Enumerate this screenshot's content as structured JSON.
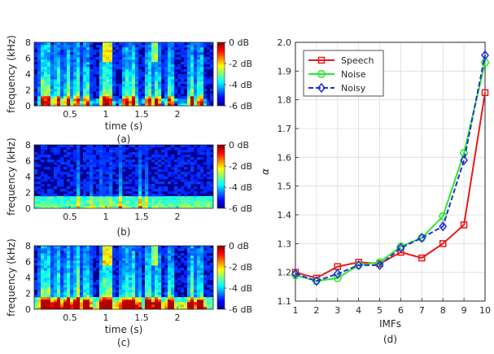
{
  "figure": {
    "spectrograms": [
      {
        "id": "a",
        "caption": "(a)",
        "xlabel": "time (s)",
        "ylabel": "frequency (kHz)",
        "x_ticks": [
          "0.5",
          "1",
          "1.5",
          "2"
        ],
        "y_ticks": [
          "0",
          "2",
          "4",
          "6",
          "8"
        ],
        "colorbar_ticks": [
          "0 dB",
          "-2 dB",
          "-4 dB",
          "-6 dB"
        ],
        "kind": "speech"
      },
      {
        "id": "b",
        "caption": "(b)",
        "xlabel": "",
        "ylabel": "frequency (kHz)",
        "x_ticks": [
          "0.5",
          "1",
          "1.5",
          "2"
        ],
        "y_ticks": [
          "0",
          "2",
          "4",
          "6",
          "8"
        ],
        "colorbar_ticks": [
          "0 dB",
          "-2 dB",
          "-4 dB",
          "-6 dB"
        ],
        "kind": "noise"
      },
      {
        "id": "c",
        "caption": "(c)",
        "xlabel": "time (s)",
        "ylabel": "frequency (kHz)",
        "x_ticks": [
          "0.5",
          "1",
          "1.5",
          "2"
        ],
        "y_ticks": [
          "0",
          "2",
          "4",
          "6",
          "8"
        ],
        "colorbar_ticks": [
          "0 dB",
          "-2 dB",
          "-4 dB",
          "-6 dB"
        ],
        "kind": "noisy"
      }
    ],
    "line_caption": "(d)"
  },
  "chart_data": [
    {
      "type": "heatmap",
      "panel": "(a)",
      "xlabel": "time (s)",
      "ylabel": "frequency (kHz)",
      "xlim": [
        0,
        2.5
      ],
      "ylim": [
        0,
        8
      ],
      "colorbar": {
        "range_db": [
          -6,
          0
        ],
        "ticks": [
          "0 dB",
          "-2 dB",
          "-4 dB",
          "-6 dB"
        ]
      }
    },
    {
      "type": "heatmap",
      "panel": "(b)",
      "xlabel": "",
      "ylabel": "frequency (kHz)",
      "xlim": [
        0,
        2.5
      ],
      "ylim": [
        0,
        8
      ],
      "colorbar": {
        "range_db": [
          -6,
          0
        ],
        "ticks": [
          "0 dB",
          "-2 dB",
          "-4 dB",
          "-6 dB"
        ]
      }
    },
    {
      "type": "heatmap",
      "panel": "(c)",
      "xlabel": "time (s)",
      "ylabel": "frequency (kHz)",
      "xlim": [
        0,
        2.5
      ],
      "ylim": [
        0,
        8
      ],
      "colorbar": {
        "range_db": [
          -6,
          0
        ],
        "ticks": [
          "0 dB",
          "-2 dB",
          "-4 dB",
          "-6 dB"
        ]
      }
    },
    {
      "type": "line",
      "panel": "(d)",
      "xlabel": "IMFs",
      "ylabel": "α",
      "x": [
        1,
        2,
        3,
        4,
        5,
        6,
        7,
        8,
        9,
        10
      ],
      "xlim": [
        1,
        10
      ],
      "ylim": [
        1.1,
        2.0
      ],
      "y_ticks": [
        1.1,
        1.2,
        1.3,
        1.4,
        1.5,
        1.6,
        1.7,
        1.8,
        1.9,
        2.0
      ],
      "grid": true,
      "legend_position": "top-left",
      "series": [
        {
          "name": "Speech",
          "color": "#e8191b",
          "marker": "square",
          "dash": "solid",
          "values": [
            1.2,
            1.18,
            1.22,
            1.235,
            1.23,
            1.27,
            1.25,
            1.3,
            1.365,
            1.825
          ]
        },
        {
          "name": "Noise",
          "color": "#2ee62e",
          "marker": "hexagon",
          "dash": "solid",
          "values": [
            1.19,
            1.17,
            1.18,
            1.225,
            1.235,
            1.29,
            1.32,
            1.395,
            1.615,
            1.93
          ]
        },
        {
          "name": "Noisy",
          "color": "#1f2fd6",
          "marker": "diamond",
          "dash": "dashed",
          "values": [
            1.195,
            1.17,
            1.195,
            1.225,
            1.225,
            1.285,
            1.32,
            1.36,
            1.59,
            1.955
          ]
        }
      ]
    }
  ]
}
